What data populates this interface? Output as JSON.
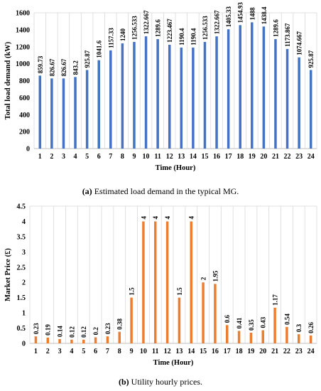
{
  "chart_data": [
    {
      "type": "bar",
      "categories": [
        "1",
        "2",
        "3",
        "4",
        "5",
        "6",
        "7",
        "8",
        "9",
        "10",
        "11",
        "12",
        "13",
        "14",
        "15",
        "16",
        "17",
        "18",
        "19",
        "20",
        "21",
        "22",
        "23",
        "24"
      ],
      "values": [
        859.73,
        826.67,
        826.67,
        843.2,
        925.87,
        1041.6,
        1157.33,
        1240,
        1256.533,
        1322.667,
        1289.6,
        1223.467,
        1190.4,
        1190.4,
        1256.533,
        1322.667,
        1405.33,
        1454.93,
        1488,
        1438.4,
        1289.6,
        1173.867,
        1074.667,
        925.87
      ],
      "data_labels": [
        "859.73",
        "826.67",
        "826.67",
        "843.2",
        "925.87",
        "1041.6",
        "1157.33",
        "1240",
        "1256.533",
        "1322.667",
        "1289.6",
        "1223.467",
        "1190.4",
        "1190.4",
        "1256.533",
        "1322.667",
        "1405.33",
        "1454.93",
        "1488",
        "1438.4",
        "1289.6",
        "1173.867",
        "1074.667",
        "925.87"
      ],
      "title": "",
      "xlabel": "Time (Hour)",
      "ylabel": "Total load demand (kW)",
      "ylim": [
        0,
        1600
      ],
      "yticks": [
        "0",
        "200",
        "400",
        "600",
        "800",
        "1000",
        "1200",
        "1400",
        "1600"
      ],
      "grid": "vertical",
      "color": "#4472C4",
      "caption_label": "(a)",
      "caption_text": " Estimated load demand in the typical MG."
    },
    {
      "type": "bar",
      "categories": [
        "1",
        "2",
        "3",
        "4",
        "5",
        "6",
        "7",
        "8",
        "9",
        "10",
        "11",
        "12",
        "13",
        "14",
        "15",
        "16",
        "17",
        "18",
        "19",
        "20",
        "21",
        "22",
        "23",
        "24"
      ],
      "values": [
        0.23,
        0.19,
        0.14,
        0.12,
        0.12,
        0.2,
        0.23,
        0.38,
        1.5,
        4,
        4,
        4,
        1.5,
        4,
        2,
        1.95,
        0.6,
        0.41,
        0.35,
        0.43,
        1.17,
        0.54,
        0.3,
        0.26
      ],
      "data_labels": [
        "0.23",
        "0.19",
        "0.14",
        "0.12",
        "0.12",
        "0.2",
        "0.23",
        "0.38",
        "1.5",
        "4",
        "4",
        "4",
        "1.5",
        "4",
        "2",
        "1.95",
        "0.6",
        "0.41",
        "0.35",
        "0.43",
        "1.17",
        "0.54",
        "0.3",
        "0.26"
      ],
      "title": "",
      "xlabel": "Time (Hour)",
      "ylabel": "Market Price (£)",
      "ylim": [
        0,
        4.5
      ],
      "yticks": [
        "0",
        "0.5",
        "1",
        "1.5",
        "2",
        "2.5",
        "3",
        "3.5",
        "4",
        "4.5"
      ],
      "grid": "vertical",
      "color": "#ED7D31",
      "caption_label": "(b)",
      "caption_text": " Utility hourly prices."
    }
  ]
}
